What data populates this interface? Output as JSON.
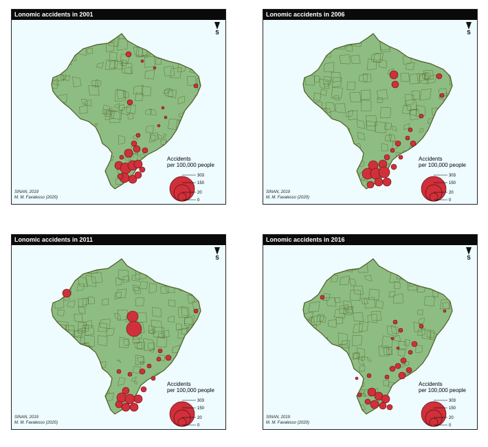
{
  "panels": [
    {
      "title": "Lonomic accidents in 2001",
      "north_label": "S",
      "legend_title_line1": "Accidents",
      "legend_title_line2": "per 100,000 people",
      "legend_values": [
        "303",
        "150",
        "20",
        "0"
      ],
      "credit_source": "SINAN, 2019",
      "credit_author": "M. M. Favalesso (2020)"
    },
    {
      "title": "Lonomic accidents in 2006",
      "north_label": "S",
      "legend_title_line1": "Accidents",
      "legend_title_line2": "per 100,000 people",
      "legend_values": [
        "303",
        "150",
        "20",
        "0"
      ],
      "credit_source": "SINAN, 2019",
      "credit_author": "M. M. Favalesso (2020)"
    },
    {
      "title": "Lonomic accidents in 2011",
      "north_label": "S",
      "legend_title_line1": "Accidents",
      "legend_title_line2": "per 100,000 people",
      "legend_values": [
        "303",
        "150",
        "20",
        "0"
      ],
      "credit_source": "SINAN, 2019",
      "credit_author": "M. M. Favalesso (2020)"
    },
    {
      "title": "Lonomic accidents in 2016",
      "north_label": "S",
      "legend_title_line1": "Accidents",
      "legend_title_line2": "per 100,000 people",
      "legend_values": [
        "303",
        "150",
        "20",
        "0"
      ],
      "credit_source": "SINAN, 2019",
      "credit_author": "M. M. Favalesso (2020)"
    }
  ],
  "colors": {
    "land": "#8dbd83",
    "municipal_borders": "#4f5a1f",
    "bubble_fill": "#d0303a",
    "bubble_stroke": "#5a0d10",
    "background": "#eefbff"
  }
}
